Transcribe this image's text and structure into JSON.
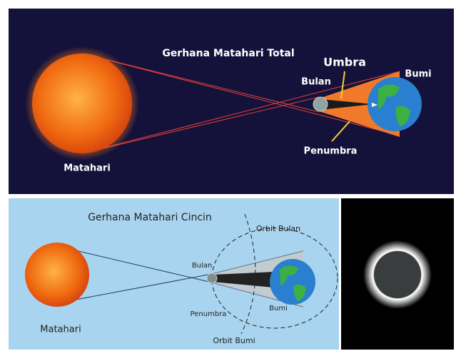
{
  "top": {
    "title": "Gerhana Matahari Total",
    "labels": {
      "umbra": "Umbra",
      "moon": "Bulan",
      "earth": "Bumi",
      "penumbra": "Penumbra",
      "sun": "Matahari"
    }
  },
  "bottom": {
    "title": "Gerhana Matahari Cincin",
    "labels": {
      "moon_orbit": "Orbit Bulan",
      "moon": "Bulan",
      "penumbra": "Penumbra",
      "earth": "Bumi",
      "sun": "Matahari",
      "earth_orbit": "Orbit Bumi"
    }
  }
}
